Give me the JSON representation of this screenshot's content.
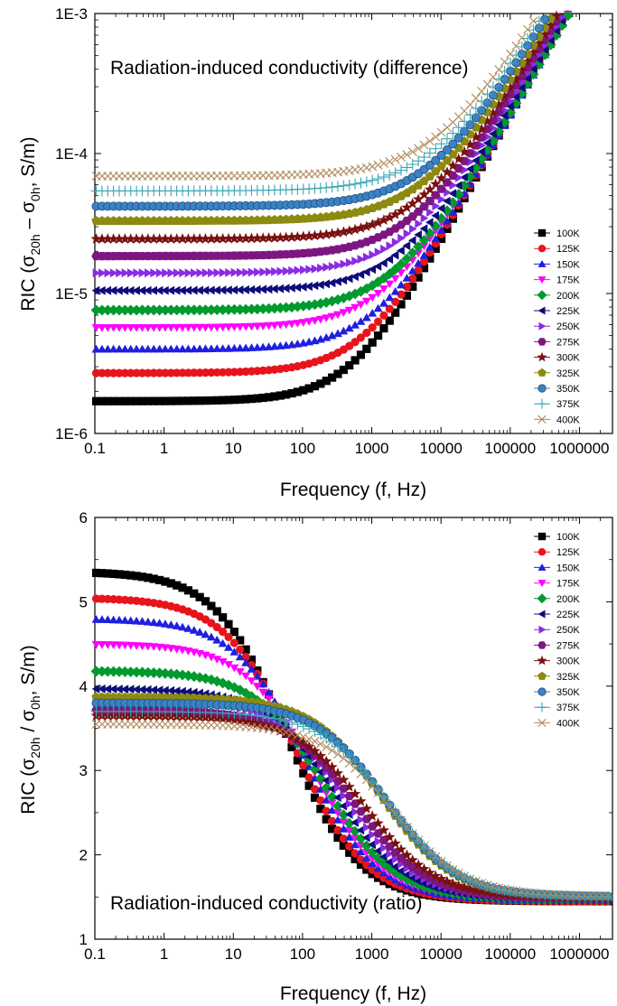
{
  "chart_data": [
    {
      "type": "scatter",
      "annotation": "Radiation-induced conductivity (difference)",
      "xlabel": "Frequency (f, Hz)",
      "ylabel": "RIC (σ20h – σ0h, S/m)",
      "ylabel_parts": {
        "pre": "RIC (σ",
        "sub1": "20h",
        "mid": " – σ",
        "sub2": "0h",
        "post": ", S/m)"
      },
      "xscale": "log",
      "yscale": "log",
      "xlim": [
        0.1,
        3000000
      ],
      "ylim": [
        1e-06,
        0.001
      ],
      "xticks": [
        0.1,
        1,
        10,
        100,
        1000,
        10000,
        100000,
        1000000
      ],
      "xtick_labels": [
        "0.1",
        "1",
        "10",
        "100",
        "1000",
        "10000",
        "100000",
        "1000000"
      ],
      "yticks": [
        1e-06,
        1e-05,
        0.0001,
        0.001
      ],
      "ytick_labels": [
        "1E-6",
        "1E-5",
        "1E-4",
        "1E-3"
      ],
      "legend_position": "right",
      "series": [
        {
          "name": "100K",
          "color": "#000000",
          "marker": "square",
          "plateau": 1.7e-06,
          "fc": 600,
          "n": 0.92
        },
        {
          "name": "125K",
          "color": "#e8141b",
          "marker": "circle",
          "plateau": 2.7e-06,
          "fc": 900,
          "n": 0.9
        },
        {
          "name": "150K",
          "color": "#1f1fe0",
          "marker": "triangle-up",
          "plateau": 4e-06,
          "fc": 1300,
          "n": 0.88
        },
        {
          "name": "175K",
          "color": "#ff00ff",
          "marker": "triangle-down",
          "plateau": 5.7e-06,
          "fc": 1700,
          "n": 0.86
        },
        {
          "name": "200K",
          "color": "#009a2e",
          "marker": "diamond",
          "plateau": 7.6e-06,
          "fc": 2300,
          "n": 0.85
        },
        {
          "name": "225K",
          "color": "#0c0c7a",
          "marker": "triangle-left",
          "plateau": 1.05e-05,
          "fc": 2900,
          "n": 0.84
        },
        {
          "name": "250K",
          "color": "#8a2be2",
          "marker": "triangle-right",
          "plateau": 1.4e-05,
          "fc": 3600,
          "n": 0.83
        },
        {
          "name": "275K",
          "color": "#7d1680",
          "marker": "hexagon",
          "plateau": 1.85e-05,
          "fc": 4300,
          "n": 0.82
        },
        {
          "name": "300K",
          "color": "#7a1010",
          "marker": "star",
          "plateau": 2.45e-05,
          "fc": 5200,
          "n": 0.81
        },
        {
          "name": "325K",
          "color": "#8c8a10",
          "marker": "pentagon",
          "plateau": 3.3e-05,
          "fc": 6300,
          "n": 0.8
        },
        {
          "name": "350K",
          "color": "#3b82c4",
          "marker": "sphere",
          "plateau": 4.2e-05,
          "fc": 7200,
          "n": 0.8
        },
        {
          "name": "375K",
          "color": "#3aa6b0",
          "marker": "plus",
          "plateau": 5.4e-05,
          "fc": 8300,
          "n": 0.79
        },
        {
          "name": "400K",
          "color": "#b08a5a",
          "marker": "x",
          "plateau": 6.9e-05,
          "fc": 9500,
          "n": 0.79
        }
      ]
    },
    {
      "type": "scatter",
      "annotation": "Radiation-induced conductivity (ratio)",
      "xlabel": "Frequency (f, Hz)",
      "ylabel": "RIC (σ20h / σ0h, S/m)",
      "ylabel_parts": {
        "pre": "RIC (σ",
        "sub1": "20h",
        "mid": " / σ",
        "sub2": "0h",
        "post": ", S/m)"
      },
      "xscale": "log",
      "yscale": "linear",
      "xlim": [
        0.1,
        3000000
      ],
      "ylim": [
        1,
        6
      ],
      "xticks": [
        0.1,
        1,
        10,
        100,
        1000,
        10000,
        100000,
        1000000
      ],
      "xtick_labels": [
        "0.1",
        "1",
        "10",
        "100",
        "1000",
        "10000",
        "100000",
        "1000000"
      ],
      "yticks": [
        1,
        2,
        3,
        4,
        5,
        6
      ],
      "ytick_labels": [
        "1",
        "2",
        "3",
        "4",
        "5",
        "6"
      ],
      "legend_position": "top-right",
      "series": [
        {
          "name": "100K",
          "color": "#000000",
          "marker": "square",
          "plateau": 5.36,
          "fc": 60,
          "final": 1.45
        },
        {
          "name": "125K",
          "color": "#e8141b",
          "marker": "circle",
          "plateau": 5.05,
          "fc": 80,
          "final": 1.45
        },
        {
          "name": "150K",
          "color": "#1f1fe0",
          "marker": "triangle-up",
          "plateau": 4.8,
          "fc": 110,
          "final": 1.46
        },
        {
          "name": "175K",
          "color": "#ff00ff",
          "marker": "triangle-down",
          "plateau": 4.5,
          "fc": 150,
          "final": 1.46
        },
        {
          "name": "200K",
          "color": "#009a2e",
          "marker": "diamond",
          "plateau": 4.18,
          "fc": 210,
          "final": 1.47
        },
        {
          "name": "225K",
          "color": "#0c0c7a",
          "marker": "triangle-left",
          "plateau": 3.97,
          "fc": 300,
          "final": 1.47
        },
        {
          "name": "250K",
          "color": "#8a2be2",
          "marker": "triangle-right",
          "plateau": 3.85,
          "fc": 420,
          "final": 1.48
        },
        {
          "name": "275K",
          "color": "#7d1680",
          "marker": "hexagon",
          "plateau": 3.72,
          "fc": 580,
          "final": 1.48
        },
        {
          "name": "300K",
          "color": "#7a1010",
          "marker": "star",
          "plateau": 3.65,
          "fc": 800,
          "final": 1.49
        },
        {
          "name": "325K",
          "color": "#8c8a10",
          "marker": "pentagon",
          "plateau": 3.87,
          "fc": 1400,
          "final": 1.5
        },
        {
          "name": "350K",
          "color": "#3b82c4",
          "marker": "sphere",
          "plateau": 3.8,
          "fc": 1600,
          "final": 1.5
        },
        {
          "name": "375K",
          "color": "#3aa6b0",
          "marker": "plus",
          "plateau": 3.7,
          "fc": 1800,
          "final": 1.5
        },
        {
          "name": "400K",
          "color": "#b08a5a",
          "marker": "x",
          "plateau": 3.55,
          "fc": 2000,
          "final": 1.51
        }
      ]
    }
  ]
}
